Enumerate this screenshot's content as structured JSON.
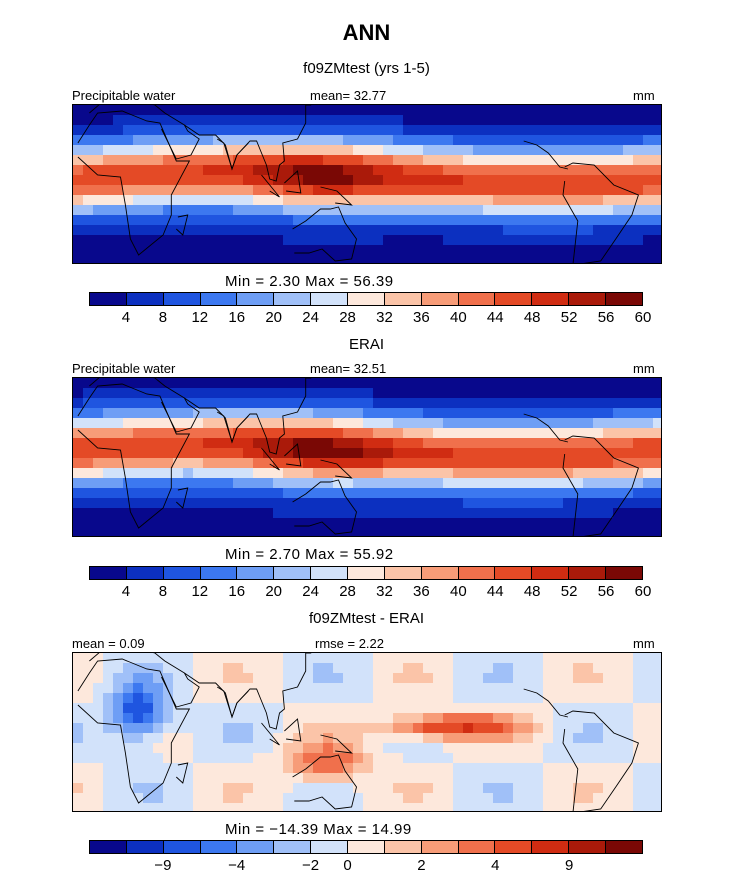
{
  "figure": {
    "title": "ANN"
  },
  "colors": {
    "model_levels": [
      "#08088c",
      "#0c30c0",
      "#1f55e0",
      "#3c78f0",
      "#6e9ef5",
      "#a0c0f8",
      "#d2e2fa",
      "#fde8dc",
      "#fbc4a8",
      "#f79c78",
      "#f0704c",
      "#e44a26",
      "#d02c12",
      "#aa1a0a",
      "#7a0805"
    ],
    "diff_levels": [
      "#08088c",
      "#0c30c0",
      "#1f55e0",
      "#3c78f0",
      "#6e9ef5",
      "#a0c0f8",
      "#d2e2fa",
      "#fde8dc",
      "#fbc4a8",
      "#f79c78",
      "#f0704c",
      "#e44a26",
      "#d02c12",
      "#aa1a0a",
      "#7a0805"
    ],
    "coast": "#000000"
  },
  "chart_data": [
    {
      "type": "heatmap",
      "title": "f09ZMtest (yrs 1-5)",
      "left_label": "Precipitable water",
      "center_label": "mean=  32.77",
      "units": "mm",
      "min_text": "Min =    2.30  Max =   56.39",
      "mean": 32.77,
      "min": 2.3,
      "max": 56.39,
      "colorbar_ticks": [
        "4",
        "8",
        "12",
        "16",
        "20",
        "24",
        "28",
        "32",
        "36",
        "40",
        "44",
        "48",
        "52",
        "56",
        "60"
      ],
      "colorbar_levels": [
        4,
        8,
        12,
        16,
        20,
        24,
        28,
        32,
        36,
        40,
        44,
        48,
        52,
        56,
        60
      ]
    },
    {
      "type": "heatmap",
      "title": "ERAI",
      "left_label": "Precipitable water",
      "center_label": "mean=  32.51",
      "units": "mm",
      "min_text": "Min =    2.70  Max =   55.92",
      "mean": 32.51,
      "min": 2.7,
      "max": 55.92,
      "colorbar_ticks": [
        "4",
        "8",
        "12",
        "16",
        "20",
        "24",
        "28",
        "32",
        "36",
        "40",
        "44",
        "48",
        "52",
        "56",
        "60"
      ],
      "colorbar_levels": [
        4,
        8,
        12,
        16,
        20,
        24,
        28,
        32,
        36,
        40,
        44,
        48,
        52,
        56,
        60
      ]
    },
    {
      "type": "heatmap",
      "title": "f09ZMtest - ERAI",
      "left_label": "mean =    0.09",
      "center_label": "rmse =    2.22",
      "units": "mm",
      "min_text": "Min = −14.39  Max =   14.99",
      "mean": 0.09,
      "rmse": 2.22,
      "min": -14.39,
      "max": 14.99,
      "colorbar_ticks": [
        "−9",
        "−4",
        "−2",
        "0",
        "2",
        "4",
        "9"
      ],
      "colorbar_tick_levels": [
        -9,
        -4,
        -2,
        0,
        2,
        4,
        9
      ]
    }
  ]
}
